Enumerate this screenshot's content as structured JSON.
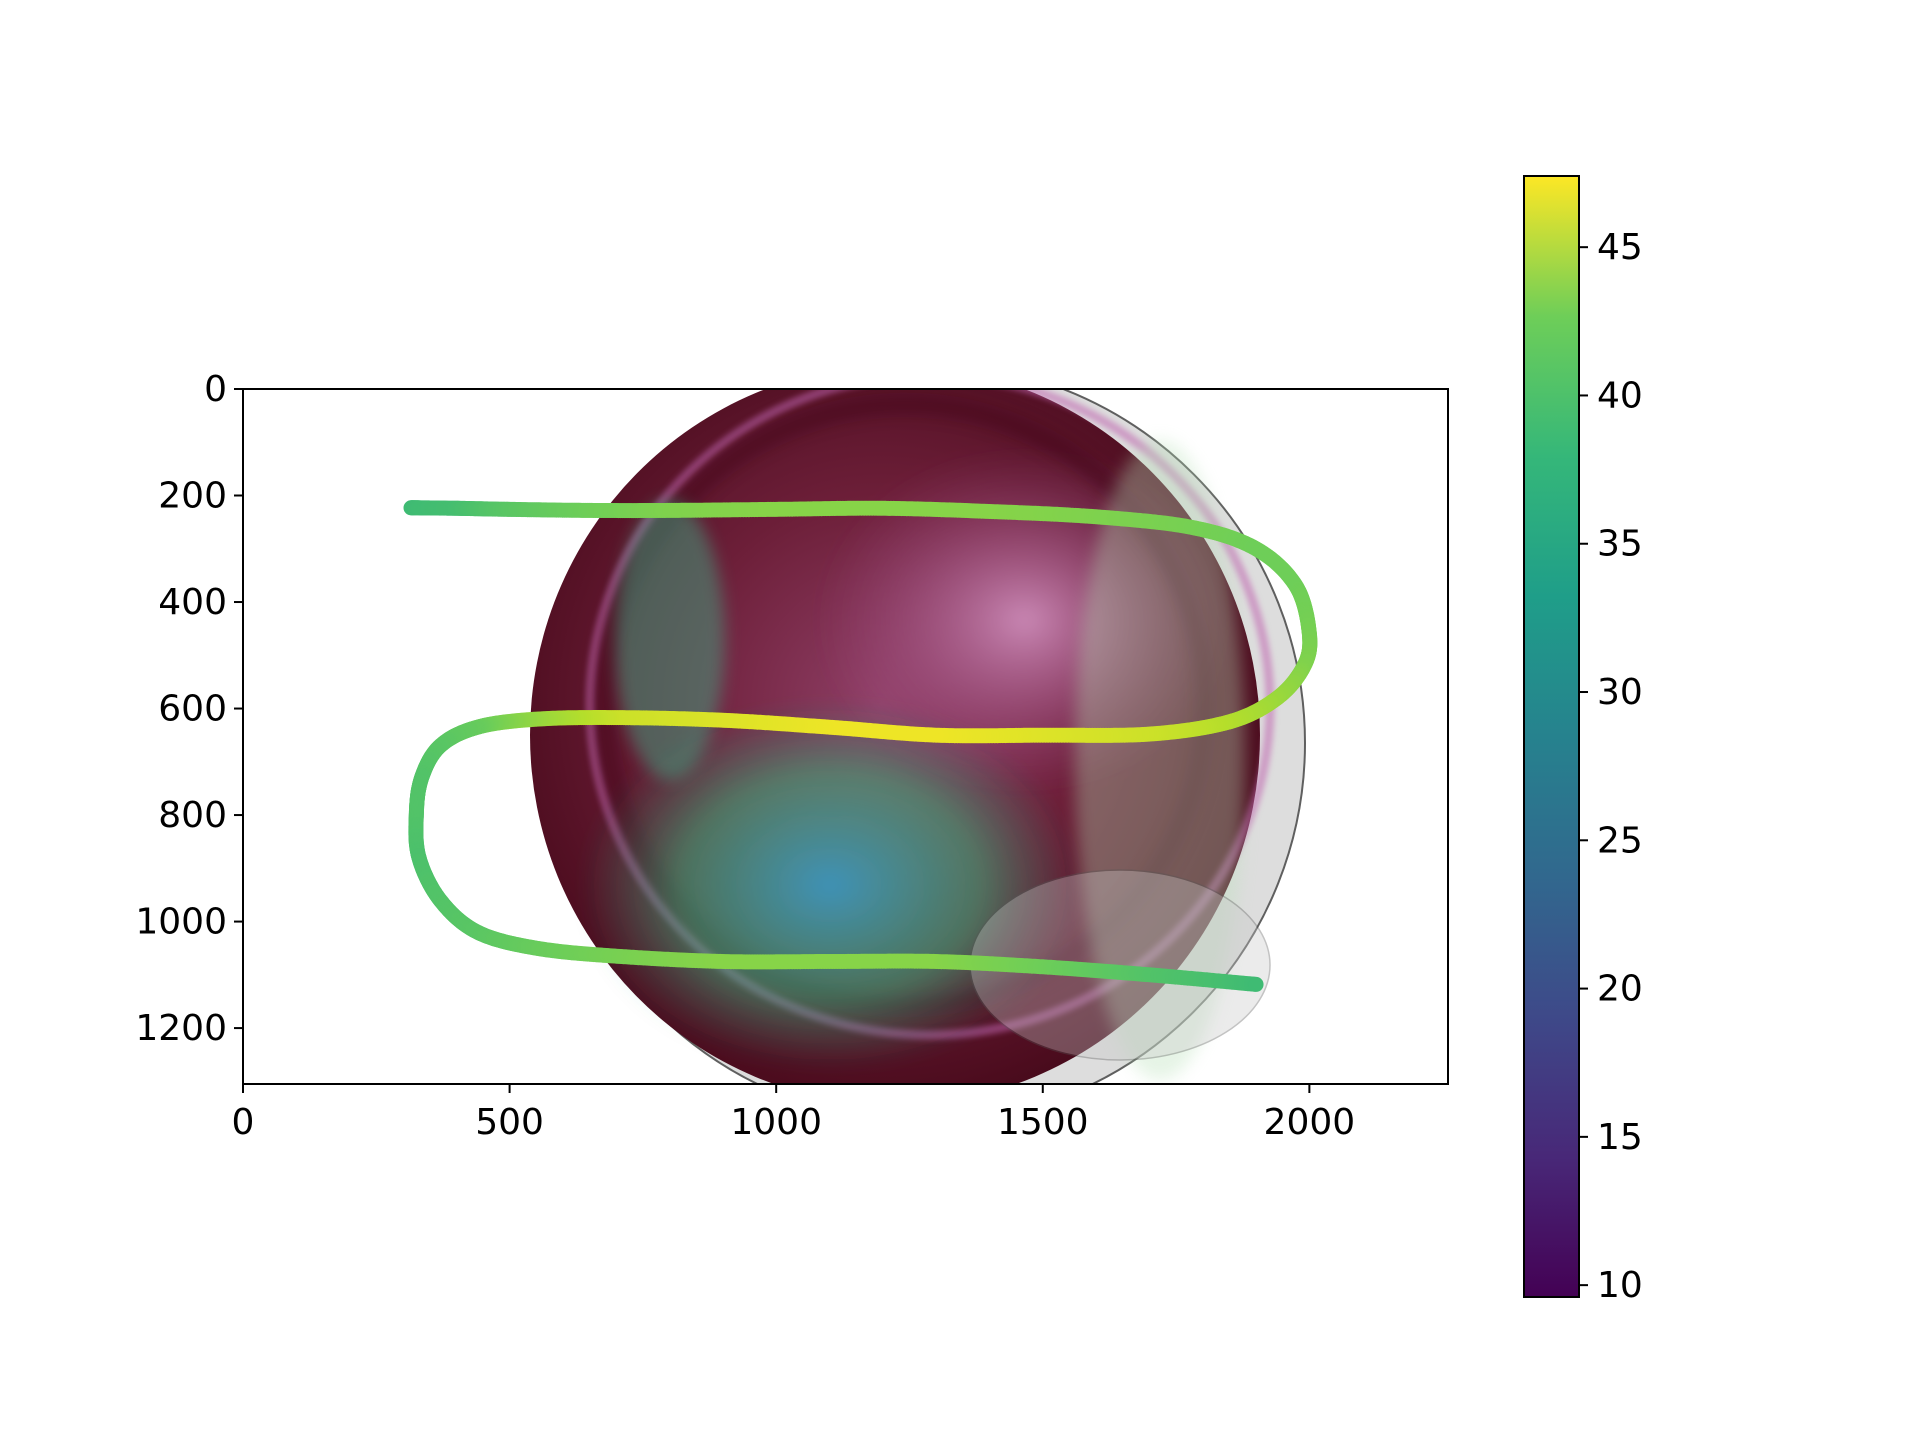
{
  "chart_data": {
    "type": "scatter",
    "description_type": "image-with-colored-path",
    "title": "",
    "xlabel": "",
    "ylabel": "",
    "xlim": [
      0,
      2260
    ],
    "ylim": [
      1305,
      0
    ],
    "y_inverted": true,
    "x_ticks": [
      0,
      500,
      1000,
      1500,
      2000
    ],
    "y_ticks": [
      0,
      200,
      400,
      600,
      800,
      1000,
      1200
    ],
    "x_tick_labels": [
      "0",
      "500",
      "1000",
      "1500",
      "2000"
    ],
    "y_tick_labels": [
      "0",
      "200",
      "400",
      "600",
      "800",
      "1000",
      "1200"
    ],
    "grid": false,
    "colormap": "viridis",
    "colorbar": {
      "range": [
        9.6,
        47.4
      ],
      "ticks": [
        10,
        15,
        20,
        25,
        30,
        35,
        40,
        45
      ],
      "tick_labels": [
        "10",
        "15",
        "20",
        "25",
        "30",
        "35",
        "40",
        "45"
      ],
      "placement": "right"
    },
    "path": [
      {
        "x": 315,
        "y": 223,
        "c": 35.5
      },
      {
        "x": 400,
        "y": 224,
        "c": 36.0
      },
      {
        "x": 500,
        "y": 226,
        "c": 37.5
      },
      {
        "x": 650,
        "y": 228,
        "c": 39.0
      },
      {
        "x": 800,
        "y": 228,
        "c": 40.0
      },
      {
        "x": 1000,
        "y": 226,
        "c": 40.5
      },
      {
        "x": 1200,
        "y": 224,
        "c": 40.5
      },
      {
        "x": 1400,
        "y": 230,
        "c": 40.5
      },
      {
        "x": 1600,
        "y": 240,
        "c": 40.0
      },
      {
        "x": 1780,
        "y": 260,
        "c": 39.5
      },
      {
        "x": 1900,
        "y": 300,
        "c": 39.0
      },
      {
        "x": 1975,
        "y": 370,
        "c": 39.0
      },
      {
        "x": 2000,
        "y": 460,
        "c": 39.5
      },
      {
        "x": 1990,
        "y": 520,
        "c": 40.0
      },
      {
        "x": 1940,
        "y": 580,
        "c": 41.5
      },
      {
        "x": 1850,
        "y": 625,
        "c": 43.0
      },
      {
        "x": 1700,
        "y": 648,
        "c": 44.5
      },
      {
        "x": 1500,
        "y": 650,
        "c": 45.5
      },
      {
        "x": 1300,
        "y": 650,
        "c": 46.5
      },
      {
        "x": 1100,
        "y": 635,
        "c": 46.5
      },
      {
        "x": 900,
        "y": 622,
        "c": 45.5
      },
      {
        "x": 700,
        "y": 617,
        "c": 44.5
      },
      {
        "x": 550,
        "y": 620,
        "c": 41.5
      },
      {
        "x": 440,
        "y": 635,
        "c": 38.5
      },
      {
        "x": 370,
        "y": 670,
        "c": 37.5
      },
      {
        "x": 335,
        "y": 730,
        "c": 37.0
      },
      {
        "x": 325,
        "y": 800,
        "c": 37.0
      },
      {
        "x": 330,
        "y": 880,
        "c": 36.5
      },
      {
        "x": 370,
        "y": 960,
        "c": 37.0
      },
      {
        "x": 440,
        "y": 1020,
        "c": 37.5
      },
      {
        "x": 550,
        "y": 1050,
        "c": 38.5
      },
      {
        "x": 700,
        "y": 1065,
        "c": 39.5
      },
      {
        "x": 900,
        "y": 1075,
        "c": 40.5
      },
      {
        "x": 1100,
        "y": 1075,
        "c": 40.5
      },
      {
        "x": 1300,
        "y": 1075,
        "c": 40.5
      },
      {
        "x": 1500,
        "y": 1085,
        "c": 39.0
      },
      {
        "x": 1700,
        "y": 1100,
        "c": 37.0
      },
      {
        "x": 1900,
        "y": 1118,
        "c": 35.5
      }
    ]
  }
}
